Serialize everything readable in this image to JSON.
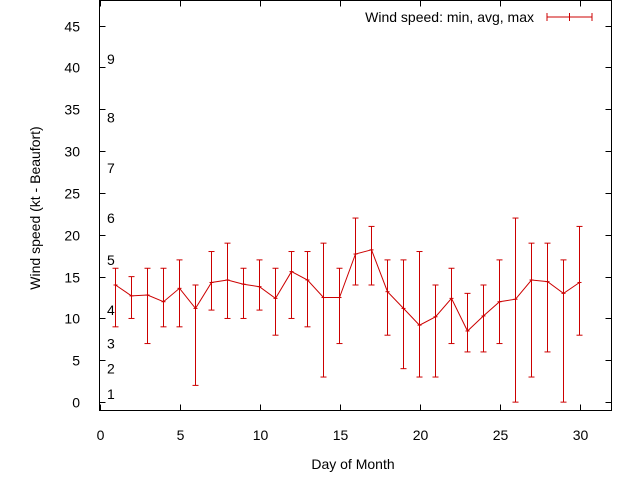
{
  "chart_data": {
    "type": "line",
    "xlabel": "Day of Month",
    "ylabel": "Wind speed (kt - Beaufort)",
    "xlim": [
      0,
      32
    ],
    "ylim": [
      -1,
      48
    ],
    "xticks": [
      0,
      5,
      10,
      15,
      20,
      25,
      30
    ],
    "yticks": [
      0,
      5,
      10,
      15,
      20,
      25,
      30,
      35,
      40,
      45
    ],
    "grid": false,
    "legend": "top-right",
    "series": [
      {
        "name": "Wind speed: min, avg, max",
        "color": "#cc0000",
        "x": [
          1,
          2,
          3,
          4,
          5,
          6,
          7,
          8,
          9,
          10,
          11,
          12,
          13,
          14,
          15,
          16,
          17,
          18,
          19,
          20,
          21,
          22,
          23,
          24,
          25,
          26,
          27,
          28,
          29,
          30
        ],
        "avg": [
          14.0,
          12.7,
          12.8,
          12.0,
          13.6,
          11.2,
          14.3,
          14.6,
          14.1,
          13.8,
          12.4,
          15.6,
          14.6,
          12.5,
          12.5,
          17.7,
          18.2,
          13.2,
          11.2,
          9.2,
          10.2,
          12.4,
          8.5,
          10.3,
          12.0,
          12.3,
          14.6,
          14.4,
          13.0,
          14.3
        ],
        "min": [
          9,
          10,
          7,
          9,
          9,
          2,
          11,
          10,
          10,
          11,
          8,
          10,
          9,
          3,
          7,
          14,
          14,
          8,
          4,
          3,
          3,
          7,
          6,
          6,
          7,
          0,
          3,
          6,
          0,
          8
        ],
        "max": [
          16,
          15,
          16,
          16,
          17,
          14,
          18,
          19,
          16,
          17,
          16,
          18,
          18,
          19,
          16,
          22,
          21,
          17,
          17,
          18,
          14,
          16,
          13,
          14,
          17,
          22,
          19,
          19,
          17,
          21
        ]
      }
    ],
    "beaufort_labels": [
      {
        "label": "1",
        "y": 1
      },
      {
        "label": "2",
        "y": 4
      },
      {
        "label": "3",
        "y": 7
      },
      {
        "label": "4",
        "y": 11
      },
      {
        "label": "5",
        "y": 17
      },
      {
        "label": "6",
        "y": 22
      },
      {
        "label": "7",
        "y": 28
      },
      {
        "label": "8",
        "y": 34
      },
      {
        "label": "9",
        "y": 41
      }
    ]
  }
}
